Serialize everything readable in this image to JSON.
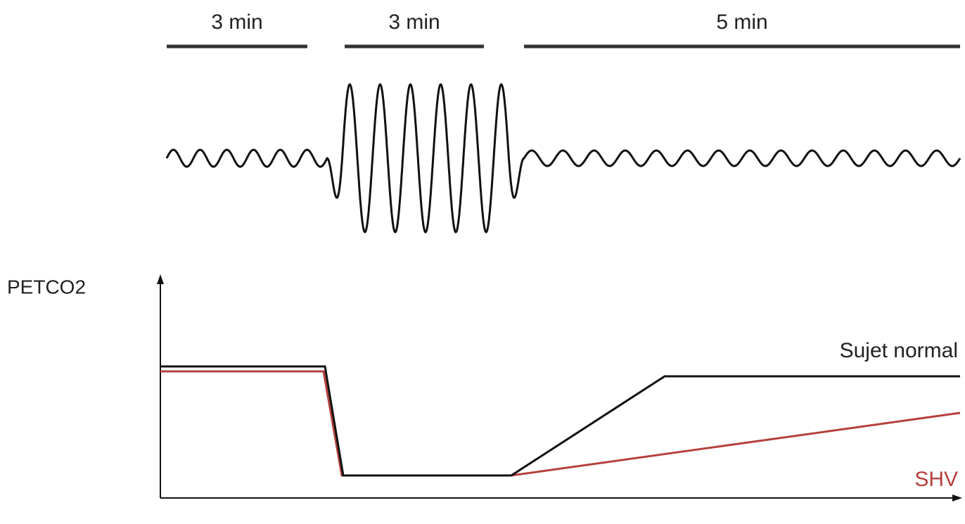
{
  "phases": [
    {
      "label": "3 min"
    },
    {
      "label": "3 min"
    },
    {
      "label": "5 min"
    }
  ],
  "y_axis_label": "PETCO2",
  "curves": [
    {
      "label": "Sujet normal"
    },
    {
      "label": "SHV"
    }
  ]
}
